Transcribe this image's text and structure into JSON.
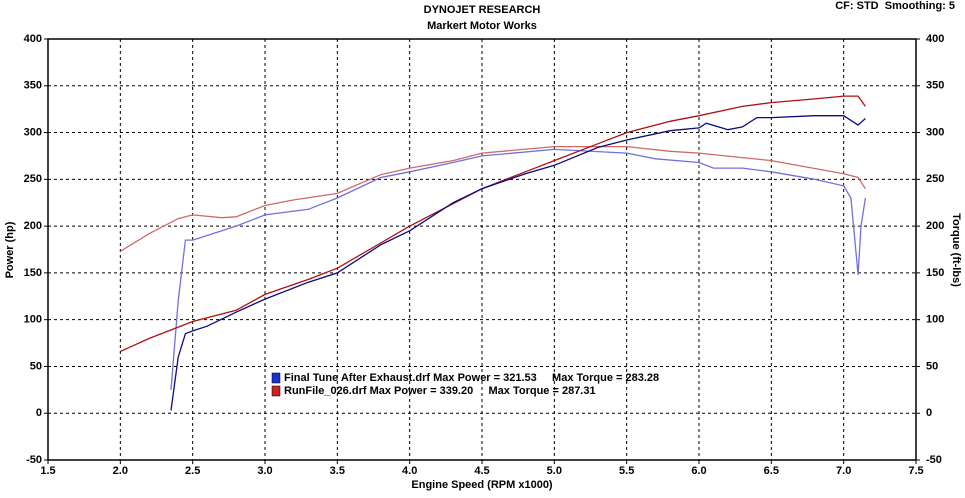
{
  "chart_data": {
    "type": "line",
    "title": "DYNOJET RESEARCH",
    "subtitle": "Markert Motor Works",
    "corner_note": "CF: STD  Smoothing: 5",
    "x_label": "Engine Speed (RPM x1000)",
    "y_label": "Power (hp)",
    "y2_label": "Torque (ft-lbs)",
    "xlim": [
      1.5,
      7.5
    ],
    "xticks": [
      1.5,
      {
        "value": 2,
        "label": "2.0"
      },
      2.5,
      {
        "value": 3,
        "label": "3.0"
      },
      3.5,
      {
        "value": 4,
        "label": "4.0"
      },
      4.5,
      {
        "value": 5,
        "label": "5.0"
      },
      5.5,
      {
        "value": 6,
        "label": "6.0"
      },
      6.5,
      {
        "value": 7,
        "label": "7.0"
      },
      7.5
    ],
    "ylim": [
      -50,
      400
    ],
    "yticks": [
      -50,
      0,
      50,
      100,
      150,
      200,
      250,
      300,
      350,
      400
    ],
    "y2lim": [
      -50,
      400
    ],
    "y2ticks": [
      -50,
      0,
      50,
      100,
      150,
      200,
      250,
      300,
      350,
      400
    ],
    "grid": true,
    "legend": [
      {
        "label": "Final Tune After Exhaust.drf Max Power = 321.53     Max Torque = 283.28",
        "color": "#1a2fd6"
      },
      {
        "label": "RunFile_026.drf Max Power = 339.20     Max Torque = 287.31",
        "color": "#d02020"
      }
    ],
    "series": [
      {
        "color": "#d06868",
        "axis": "y2",
        "x": [
          2.0,
          2.2,
          2.4,
          2.5,
          2.7,
          2.8,
          3.0,
          3.2,
          3.5,
          3.8,
          4.0,
          4.3,
          4.5,
          5.0,
          5.5,
          5.8,
          6.0,
          6.5,
          7.0,
          7.1,
          7.15
        ],
        "values": [
          173,
          192,
          208,
          212,
          209,
          210,
          222,
          228,
          235,
          255,
          262,
          270,
          278,
          285,
          285,
          280,
          278,
          270,
          256,
          252,
          240
        ]
      },
      {
        "color": "#7070e0",
        "axis": "y2",
        "x": [
          2.35,
          2.4,
          2.45,
          2.5,
          2.6,
          2.8,
          3.0,
          3.3,
          3.5,
          3.8,
          4.0,
          4.3,
          4.5,
          5.0,
          5.5,
          5.7,
          6.0,
          6.1,
          6.3,
          6.5,
          6.8,
          7.0,
          7.05,
          7.1,
          7.12,
          7.15
        ],
        "values": [
          25,
          120,
          185,
          185,
          190,
          200,
          212,
          218,
          230,
          252,
          258,
          268,
          275,
          282,
          278,
          272,
          268,
          262,
          262,
          258,
          250,
          243,
          230,
          148,
          200,
          230
        ]
      },
      {
        "color": "#b01010",
        "x": [
          2.0,
          2.2,
          2.5,
          2.8,
          3.0,
          3.3,
          3.5,
          3.8,
          4.0,
          4.3,
          4.5,
          4.8,
          5.0,
          5.3,
          5.5,
          5.8,
          6.0,
          6.3,
          6.5,
          6.8,
          7.0,
          7.1,
          7.15
        ],
        "values": [
          66,
          80,
          98,
          110,
          127,
          143,
          155,
          182,
          200,
          224,
          240,
          258,
          270,
          288,
          300,
          312,
          318,
          328,
          332,
          336,
          339,
          339,
          328
        ]
      },
      {
        "color": "#0a0a80",
        "x": [
          2.35,
          2.4,
          2.45,
          2.5,
          2.6,
          2.8,
          3.0,
          3.3,
          3.5,
          3.8,
          4.0,
          4.3,
          4.5,
          4.8,
          5.0,
          5.3,
          5.5,
          5.8,
          6.0,
          6.05,
          6.2,
          6.3,
          6.4,
          6.5,
          6.8,
          7.0,
          7.1,
          7.15
        ],
        "values": [
          3,
          60,
          85,
          88,
          93,
          108,
          122,
          140,
          150,
          180,
          195,
          225,
          240,
          256,
          265,
          284,
          292,
          302,
          305,
          310,
          303,
          306,
          316,
          316,
          318,
          318,
          308,
          315
        ]
      }
    ]
  }
}
